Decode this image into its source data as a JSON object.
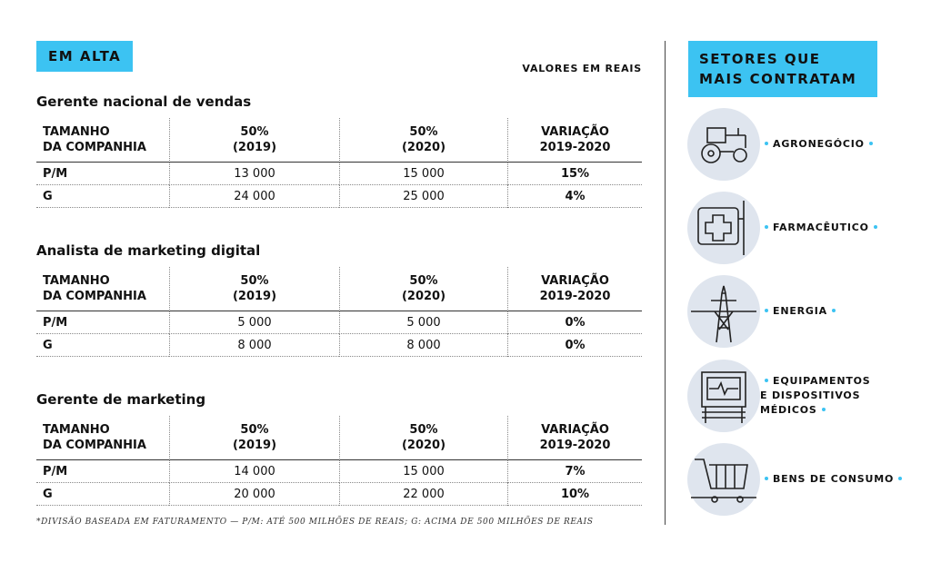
{
  "left": {
    "badge": "EM ALTA",
    "note": "VALORES EM REAIS",
    "sections": [
      {
        "title": "Gerente nacional de vendas",
        "header": [
          "TAMANHO\nDA COMPANHIA",
          "50%\n(2019)",
          "50%\n(2020)",
          "VARIAÇÃO\n2019-2020"
        ],
        "rows": [
          [
            "P/M",
            "13 000",
            "15 000",
            "15%"
          ],
          [
            "G",
            "24 000",
            "25 000",
            "4%"
          ]
        ]
      },
      {
        "title": "Analista de marketing digital",
        "header": [
          "TAMANHO\nDA COMPANHIA",
          "50%\n(2019)",
          "50%\n(2020)",
          "VARIAÇÃO\n2019-2020"
        ],
        "rows": [
          [
            "P/M",
            "5 000",
            "5 000",
            "0%"
          ],
          [
            "G",
            "8 000",
            "8 000",
            "0%"
          ]
        ]
      },
      {
        "title": "Gerente de marketing",
        "header": [
          "TAMANHO\nDA COMPANHIA",
          "50%\n(2019)",
          "50%\n(2020)",
          "VARIAÇÃO\n2019-2020"
        ],
        "rows": [
          [
            "P/M",
            "14 000",
            "15 000",
            "7%"
          ],
          [
            "G",
            "20 000",
            "22 000",
            "10%"
          ]
        ]
      }
    ],
    "footnote": "*DIVISÃO BASEADA EM FATURAMENTO — P/M: ATÉ 500 MILHÕES DE REAIS; G: ACIMA DE 500 MILHÕES DE REAIS"
  },
  "right": {
    "badge": "SETORES QUE\nMAIS CONTRATAM",
    "items": [
      "AGRONEGÓCIO",
      "FARMACÊUTICO",
      "ENERGIA",
      "EQUIPAMENTOS\nE DISPOSITIVOS\nMÉDICOS",
      "BENS DE CONSUMO"
    ]
  }
}
